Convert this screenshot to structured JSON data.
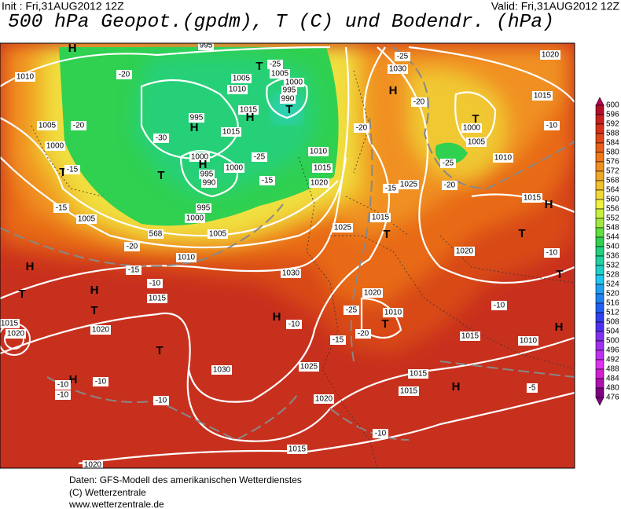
{
  "header": {
    "init": "Init : Fri,31AUG2012 12Z",
    "valid": "Valid: Fri,31AUG2012 12Z",
    "title": "500 hPa Geopot.(gpdm), T (C) und Bodendr. (hPa)"
  },
  "colorbar": {
    "levels": [
      "600",
      "596",
      "592",
      "588",
      "584",
      "580",
      "576",
      "572",
      "568",
      "564",
      "560",
      "556",
      "552",
      "548",
      "544",
      "540",
      "536",
      "532",
      "528",
      "524",
      "520",
      "516",
      "512",
      "508",
      "504",
      "500",
      "496",
      "492",
      "488",
      "484",
      "480",
      "476"
    ],
    "colors": [
      "#c0005a",
      "#b0102a",
      "#c82020",
      "#d83018",
      "#e04818",
      "#e86018",
      "#f07818",
      "#f09020",
      "#f0a828",
      "#f0c030",
      "#f0d838",
      "#f0f040",
      "#c8f040",
      "#a0e840",
      "#60e040",
      "#30d050",
      "#20d080",
      "#20d0a0",
      "#20d0c8",
      "#20c8f0",
      "#20a0f0",
      "#2080f0",
      "#2060f0",
      "#3040f0",
      "#5030f0",
      "#8030f0",
      "#a030f0",
      "#c030f0",
      "#e030f0",
      "#d020d0",
      "#b010b0",
      "#800080"
    ]
  },
  "map_labels": [
    "H",
    "1010",
    "-20",
    "1005",
    "-20",
    "1000",
    "T",
    "-15",
    "-15",
    "1005",
    "995",
    "T",
    "-25",
    "1005",
    "1005",
    "1010",
    "1000",
    "995",
    "990",
    "T",
    "1015",
    "H",
    "995",
    "-30",
    "H",
    "1015",
    "1000",
    "H",
    "995",
    "990",
    "T",
    "1000",
    "-25",
    "-15",
    "1010",
    "1015",
    "1020",
    "995",
    "1000",
    "1005",
    "568",
    "-20",
    "1010",
    "H",
    "-15",
    "-10",
    "T",
    "H",
    "1015",
    "T",
    "1015",
    "1020",
    "1020",
    "T",
    "1030",
    "H",
    "-10",
    "1030",
    "1025",
    "-20",
    "1030",
    "-25",
    "H",
    "-20",
    "1020",
    "1015",
    "T",
    "1000",
    "1005",
    "-25",
    "1010",
    "-20",
    "-10",
    "1015",
    "H",
    "1025",
    "-15",
    "1015",
    "T",
    "T",
    "1020",
    "-10",
    "T",
    "1020",
    "-25",
    "1010",
    "T",
    "-20",
    "-15",
    "1015",
    "-10",
    "1010",
    "H",
    "1025",
    "1015",
    "1015",
    "H",
    "-5",
    "1020",
    "-10",
    "1015",
    "1020",
    "-10",
    "H",
    "-10",
    "-10",
    "-10"
  ],
  "footer": [
    "Daten: GFS-Modell des amerikanischen Wetterdienstes",
    "(C) Wetterzentrale",
    "www.wetterzentrale.de"
  ]
}
